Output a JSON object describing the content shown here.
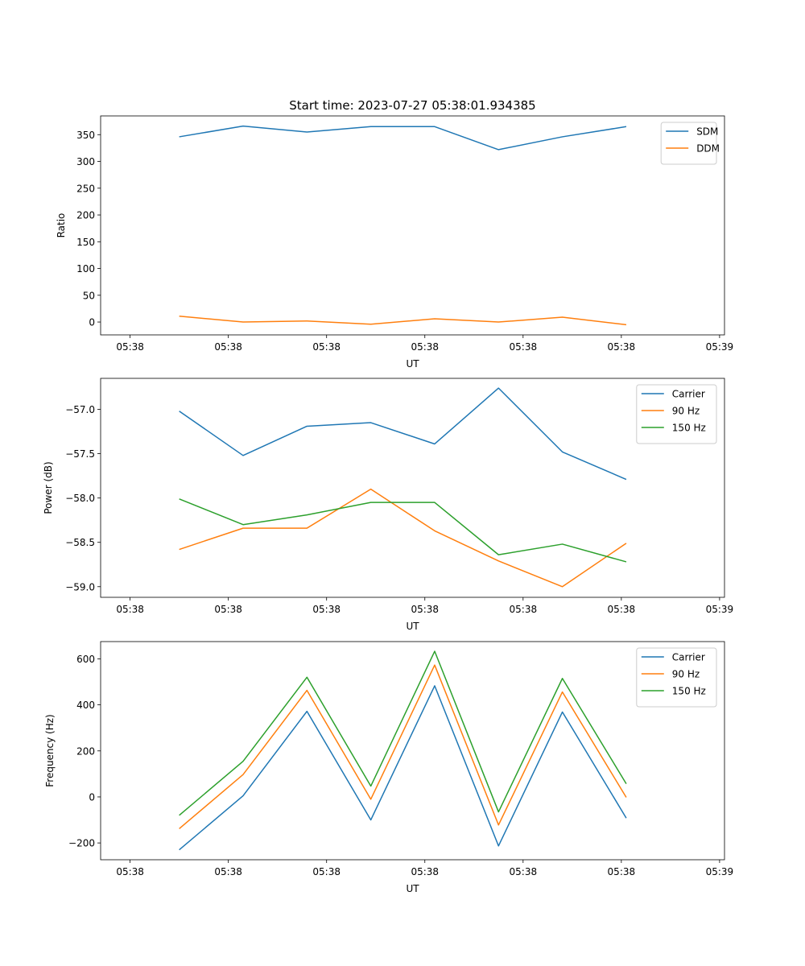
{
  "chart_data": [
    {
      "type": "line",
      "title": "Start time: 2023-07-27 05:38:01.934385",
      "xlabel": "UT",
      "ylabel": "Ratio",
      "x_ticks": [
        0,
        1,
        2,
        3,
        4,
        5,
        6
      ],
      "x_tick_labels": [
        "05:38",
        "05:38",
        "05:38",
        "05:38",
        "05:38",
        "05:38",
        "05:39"
      ],
      "xlim": [
        -0.3,
        6.05
      ],
      "ylim": [
        -24,
        385
      ],
      "y_ticks": [
        0,
        50,
        100,
        150,
        200,
        250,
        300,
        350
      ],
      "y_tick_labels": [
        "0",
        "50",
        "100",
        "150",
        "200",
        "250",
        "300",
        "350"
      ],
      "x": [
        0.5,
        1.15,
        1.8,
        2.45,
        3.1,
        3.75,
        4.4,
        5.05
      ],
      "legend_position": "top-right",
      "series": [
        {
          "name": "SDM",
          "color": "#1f77b4",
          "values": [
            346,
            366,
            355,
            365,
            365,
            322,
            346,
            365
          ]
        },
        {
          "name": "DDM",
          "color": "#ff7f0e",
          "values": [
            11,
            0,
            2,
            -4,
            6,
            0,
            9,
            -5
          ]
        }
      ]
    },
    {
      "type": "line",
      "title": "",
      "xlabel": "UT",
      "ylabel": "Power (dB)",
      "x_ticks": [
        0,
        1,
        2,
        3,
        4,
        5,
        6
      ],
      "x_tick_labels": [
        "05:38",
        "05:38",
        "05:38",
        "05:38",
        "05:38",
        "05:38",
        "05:39"
      ],
      "xlim": [
        -0.3,
        6.05
      ],
      "ylim": [
        -59.12,
        -56.65
      ],
      "y_ticks": [
        -57.0,
        -57.5,
        -58.0,
        -58.5,
        -59.0
      ],
      "y_tick_labels": [
        "−57.0",
        "−57.5",
        "−58.0",
        "−58.5",
        "−59.0"
      ],
      "x": [
        0.5,
        1.15,
        1.8,
        2.45,
        3.1,
        3.75,
        4.4,
        5.05
      ],
      "legend_position": "top-right",
      "series": [
        {
          "name": "Carrier",
          "color": "#1f77b4",
          "values": [
            -57.02,
            -57.52,
            -57.19,
            -57.15,
            -57.39,
            -56.76,
            -57.48,
            -57.79
          ]
        },
        {
          "name": "90 Hz",
          "color": "#ff7f0e",
          "values": [
            -58.58,
            -58.34,
            -58.34,
            -57.9,
            -58.37,
            -58.71,
            -59.0,
            -58.51
          ]
        },
        {
          "name": "150 Hz",
          "color": "#2ca02c",
          "values": [
            -58.01,
            -58.3,
            -58.19,
            -58.05,
            -58.05,
            -58.64,
            -58.52,
            -58.72
          ]
        }
      ]
    },
    {
      "type": "line",
      "title": "",
      "xlabel": "UT",
      "ylabel": "Frequency (Hz)",
      "x_ticks": [
        0,
        1,
        2,
        3,
        4,
        5,
        6
      ],
      "x_tick_labels": [
        "05:38",
        "05:38",
        "05:38",
        "05:38",
        "05:38",
        "05:38",
        "05:39"
      ],
      "xlim": [
        -0.3,
        6.05
      ],
      "ylim": [
        -273,
        675
      ],
      "y_ticks": [
        600,
        400,
        200,
        0,
        -200
      ],
      "y_tick_labels": [
        "600",
        "400",
        "200",
        "0",
        "−200"
      ],
      "x": [
        0.5,
        1.15,
        1.8,
        2.45,
        3.1,
        3.75,
        4.4,
        5.05
      ],
      "legend_position": "top-right",
      "series": [
        {
          "name": "Carrier",
          "color": "#1f77b4",
          "values": [
            -230,
            5,
            372,
            -100,
            483,
            -213,
            369,
            -92
          ]
        },
        {
          "name": "90 Hz",
          "color": "#ff7f0e",
          "values": [
            -138,
            97,
            463,
            -10,
            573,
            -122,
            456,
            -2
          ]
        },
        {
          "name": "150 Hz",
          "color": "#2ca02c",
          "values": [
            -80,
            155,
            520,
            47,
            633,
            -65,
            515,
            57
          ]
        }
      ]
    }
  ]
}
